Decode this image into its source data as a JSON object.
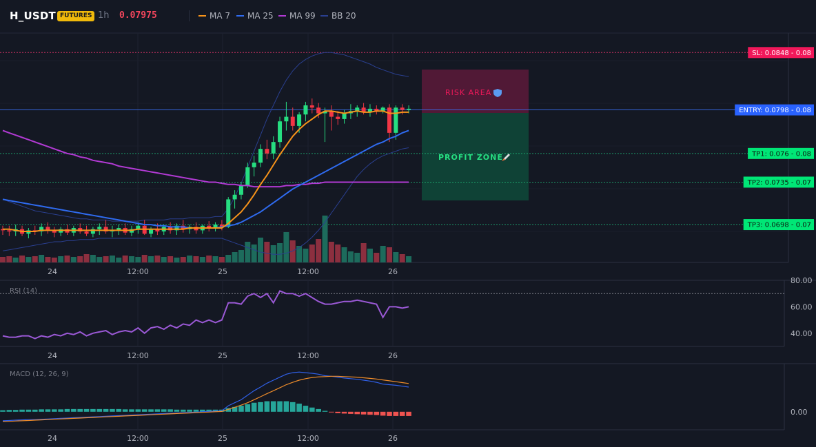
{
  "header": {
    "symbol": "H_USDT",
    "badge": "FUTURES",
    "interval": "1h",
    "price": "0.07975",
    "legend": [
      {
        "label": "MA 7",
        "color": "#f7931a"
      },
      {
        "label": "MA 25",
        "color": "#2f6bf0"
      },
      {
        "label": "MA 99",
        "color": "#b23ad4"
      },
      {
        "label": "BB 20",
        "color": "#2a3f8f"
      }
    ]
  },
  "zones": {
    "risk_label": "RISK AREA",
    "profit_label": "PROFIT ZONE"
  },
  "levels": [
    {
      "id": "sl",
      "label": "SL: 0.0848 - 0.08",
      "value": 0.0848,
      "bg": "#f0185a",
      "fg": "#ffffff",
      "line": "#e0356a"
    },
    {
      "id": "entry",
      "label": "ENTRY: 0.0798 - 0.08",
      "value": 0.0798,
      "bg": "#2962ff",
      "fg": "#ffffff",
      "line": "#3a6df0"
    },
    {
      "id": "tp1",
      "label": "TP1: 0.076 - 0.08",
      "value": 0.076,
      "bg": "#00e676",
      "fg": "#0b1a10",
      "line": "#1ea870"
    },
    {
      "id": "tp2",
      "label": "TP2: 0.0735 - 0.07",
      "value": 0.0735,
      "bg": "#00e676",
      "fg": "#0b1a10",
      "line": "#1ea870"
    },
    {
      "id": "tp3",
      "label": "TP3: 0.0698 - 0.07",
      "value": 0.0698,
      "bg": "#00e676",
      "fg": "#0b1a10",
      "line": "#1ea870"
    }
  ],
  "x_ticks": [
    "24",
    "12:00",
    "25",
    "12:00",
    "26"
  ],
  "rsi": {
    "title": "RSI (14)",
    "ticks": [
      "80.00",
      "60.00",
      "40.00"
    ],
    "range": [
      30,
      80
    ]
  },
  "macd": {
    "title": "MACD (12, 26, 9)",
    "ticks": [
      "0.00"
    ]
  },
  "colors": {
    "up": "#26de81",
    "down": "#f23645",
    "vol_up": "#1d6b5c",
    "vol_down": "#8c2f3f",
    "rsi": "#9b59d6",
    "macd": "#3060e8",
    "signal": "#ef8c2a",
    "hist_up": "#26a69a",
    "hist_down": "#ef5350"
  },
  "chart_data": {
    "type": "candlestick",
    "price_range": [
      0.0665,
      0.0865
    ],
    "candles": [
      [
        0.0694,
        0.0697,
        0.0689,
        0.0693
      ],
      [
        0.0693,
        0.0697,
        0.0688,
        0.0692
      ],
      [
        0.0692,
        0.0698,
        0.0688,
        0.0694
      ],
      [
        0.0694,
        0.0697,
        0.0688,
        0.069
      ],
      [
        0.069,
        0.0695,
        0.0686,
        0.0693
      ],
      [
        0.0693,
        0.0697,
        0.0689,
        0.0692
      ],
      [
        0.0692,
        0.0699,
        0.0688,
        0.0696
      ],
      [
        0.0696,
        0.07,
        0.069,
        0.0693
      ],
      [
        0.0693,
        0.0696,
        0.0687,
        0.0691
      ],
      [
        0.0691,
        0.0696,
        0.0688,
        0.0694
      ],
      [
        0.0694,
        0.0698,
        0.0689,
        0.0691
      ],
      [
        0.0691,
        0.0697,
        0.0688,
        0.0695
      ],
      [
        0.0695,
        0.0699,
        0.069,
        0.0692
      ],
      [
        0.0692,
        0.0697,
        0.0688,
        0.069
      ],
      [
        0.069,
        0.0696,
        0.0687,
        0.0694
      ],
      [
        0.0694,
        0.0699,
        0.0689,
        0.0696
      ],
      [
        0.0696,
        0.0702,
        0.069,
        0.0692
      ],
      [
        0.0692,
        0.0697,
        0.0687,
        0.0693
      ],
      [
        0.0693,
        0.0698,
        0.0689,
        0.0695
      ],
      [
        0.0695,
        0.0699,
        0.0689,
        0.0691
      ],
      [
        0.0691,
        0.0697,
        0.0688,
        0.0694
      ],
      [
        0.0694,
        0.07,
        0.069,
        0.0697
      ],
      [
        0.0697,
        0.0702,
        0.0689,
        0.069
      ],
      [
        0.069,
        0.0696,
        0.0687,
        0.0694
      ],
      [
        0.0694,
        0.0699,
        0.0689,
        0.0692
      ],
      [
        0.0692,
        0.0698,
        0.0689,
        0.0696
      ],
      [
        0.0696,
        0.07,
        0.069,
        0.0693
      ],
      [
        0.0693,
        0.0699,
        0.0689,
        0.0697
      ],
      [
        0.0697,
        0.0702,
        0.0691,
        0.0694
      ],
      [
        0.0694,
        0.0698,
        0.069,
        0.0696
      ],
      [
        0.0696,
        0.07,
        0.069,
        0.0693
      ],
      [
        0.0693,
        0.0698,
        0.069,
        0.0697
      ],
      [
        0.0697,
        0.0701,
        0.0692,
        0.0695
      ],
      [
        0.0695,
        0.07,
        0.0692,
        0.0698
      ],
      [
        0.0698,
        0.0702,
        0.0693,
        0.0696
      ],
      [
        0.0696,
        0.0722,
        0.0695,
        0.072
      ],
      [
        0.072,
        0.0728,
        0.0712,
        0.0724
      ],
      [
        0.0724,
        0.0735,
        0.072,
        0.0732
      ],
      [
        0.0732,
        0.0752,
        0.073,
        0.0748
      ],
      [
        0.0748,
        0.0758,
        0.074,
        0.0752
      ],
      [
        0.0752,
        0.0768,
        0.0748,
        0.0764
      ],
      [
        0.0764,
        0.0772,
        0.0755,
        0.076
      ],
      [
        0.076,
        0.0775,
        0.0755,
        0.077
      ],
      [
        0.077,
        0.0792,
        0.0765,
        0.0788
      ],
      [
        0.0788,
        0.0805,
        0.078,
        0.0792
      ],
      [
        0.0792,
        0.08,
        0.078,
        0.0784
      ],
      [
        0.0784,
        0.0796,
        0.0778,
        0.0794
      ],
      [
        0.0794,
        0.0805,
        0.0788,
        0.0802
      ],
      [
        0.0802,
        0.0808,
        0.0795,
        0.08
      ],
      [
        0.08,
        0.0804,
        0.0791,
        0.0795
      ],
      [
        0.0795,
        0.08,
        0.077,
        0.0797
      ],
      [
        0.0797,
        0.0802,
        0.078,
        0.0792
      ],
      [
        0.0792,
        0.0797,
        0.0785,
        0.079
      ],
      [
        0.079,
        0.0798,
        0.0786,
        0.0795
      ],
      [
        0.0795,
        0.0803,
        0.079,
        0.0797
      ],
      [
        0.0797,
        0.0802,
        0.0792,
        0.08
      ],
      [
        0.08,
        0.0804,
        0.0794,
        0.0796
      ],
      [
        0.0796,
        0.0803,
        0.0792,
        0.0799
      ],
      [
        0.0799,
        0.0802,
        0.0794,
        0.0797
      ],
      [
        0.0797,
        0.0801,
        0.0795,
        0.08
      ],
      [
        0.08,
        0.0803,
        0.077,
        0.0778
      ],
      [
        0.0778,
        0.0802,
        0.0772,
        0.08
      ],
      [
        0.08,
        0.0803,
        0.0794,
        0.0798
      ],
      [
        0.0798,
        0.0802,
        0.0795,
        0.0799
      ]
    ],
    "volume": [
      8,
      9,
      7,
      10,
      8,
      9,
      11,
      8,
      7,
      9,
      10,
      8,
      9,
      12,
      11,
      8,
      9,
      10,
      7,
      10,
      9,
      8,
      11,
      9,
      10,
      8,
      9,
      7,
      8,
      10,
      9,
      8,
      10,
      9,
      8,
      11,
      15,
      18,
      30,
      26,
      36,
      30,
      25,
      28,
      44,
      32,
      24,
      20,
      26,
      34,
      68,
      30,
      26,
      22,
      16,
      14,
      28,
      20,
      14,
      24,
      22,
      15,
      12,
      9
    ],
    "rsi": [
      38,
      37,
      37,
      38,
      38,
      36,
      38,
      37,
      39,
      38,
      40,
      39,
      41,
      38,
      40,
      41,
      42,
      39,
      41,
      42,
      41,
      44,
      40,
      44,
      45,
      43,
      46,
      44,
      47,
      46,
      50,
      48,
      50,
      48,
      50,
      63,
      63,
      62,
      68,
      70,
      67,
      70,
      63,
      72,
      70,
      70,
      68,
      70,
      67,
      64,
      62,
      62,
      63,
      64,
      64,
      65,
      64,
      63,
      62,
      52,
      60,
      60,
      59,
      60
    ],
    "macd": [
      -0.3,
      -0.29,
      -0.28,
      -0.27,
      -0.26,
      -0.26,
      -0.25,
      -0.24,
      -0.23,
      -0.22,
      -0.21,
      -0.2,
      -0.19,
      -0.18,
      -0.17,
      -0.16,
      -0.15,
      -0.14,
      -0.13,
      -0.12,
      -0.11,
      -0.1,
      -0.09,
      -0.08,
      -0.07,
      -0.06,
      -0.05,
      -0.04,
      -0.03,
      -0.02,
      -0.01,
      0.0,
      0.01,
      0.02,
      0.03,
      0.2,
      0.3,
      0.4,
      0.55,
      0.7,
      0.82,
      0.95,
      1.05,
      1.15,
      1.25,
      1.3,
      1.32,
      1.3,
      1.28,
      1.25,
      1.2,
      1.18,
      1.15,
      1.12,
      1.1,
      1.08,
      1.05,
      1.02,
      0.98,
      0.92,
      0.9,
      0.88,
      0.85,
      0.82
    ],
    "signal": [
      -0.33,
      -0.32,
      -0.31,
      -0.3,
      -0.29,
      -0.28,
      -0.27,
      -0.26,
      -0.25,
      -0.24,
      -0.23,
      -0.22,
      -0.21,
      -0.2,
      -0.19,
      -0.18,
      -0.17,
      -0.16,
      -0.15,
      -0.14,
      -0.13,
      -0.12,
      -0.11,
      -0.1,
      -0.09,
      -0.08,
      -0.07,
      -0.06,
      -0.05,
      -0.04,
      -0.03,
      -0.02,
      -0.01,
      0.0,
      0.01,
      0.08,
      0.15,
      0.22,
      0.3,
      0.4,
      0.5,
      0.6,
      0.7,
      0.8,
      0.9,
      0.98,
      1.05,
      1.1,
      1.14,
      1.16,
      1.17,
      1.18,
      1.18,
      1.17,
      1.16,
      1.15,
      1.13,
      1.11,
      1.09,
      1.06,
      1.03,
      1.0,
      0.97,
      0.94
    ],
    "hist": [
      0.05,
      0.06,
      0.06,
      0.07,
      0.07,
      0.07,
      0.08,
      0.08,
      0.08,
      0.08,
      0.09,
      0.09,
      0.09,
      0.09,
      0.09,
      0.09,
      0.09,
      0.09,
      0.09,
      0.08,
      0.08,
      0.08,
      0.08,
      0.08,
      0.08,
      0.08,
      0.08,
      0.07,
      0.07,
      0.07,
      0.07,
      0.07,
      0.07,
      0.07,
      0.07,
      0.12,
      0.16,
      0.2,
      0.25,
      0.3,
      0.32,
      0.35,
      0.35,
      0.35,
      0.35,
      0.32,
      0.27,
      0.2,
      0.14,
      0.09,
      0.03,
      -0.02,
      -0.05,
      -0.06,
      -0.07,
      -0.08,
      -0.09,
      -0.1,
      -0.11,
      -0.13,
      -0.14,
      -0.14,
      -0.14,
      -0.14
    ],
    "ma7": [
      0.0694,
      0.0694,
      0.0693,
      0.0692,
      0.0692,
      0.0692,
      0.0693,
      0.0693,
      0.0693,
      0.0693,
      0.0693,
      0.0693,
      0.0693,
      0.0693,
      0.0693,
      0.0693,
      0.0693,
      0.0693,
      0.0693,
      0.0693,
      0.0693,
      0.0694,
      0.0694,
      0.0694,
      0.0694,
      0.0694,
      0.0694,
      0.0694,
      0.0694,
      0.0695,
      0.0695,
      0.0695,
      0.0695,
      0.0695,
      0.0695,
      0.0699,
      0.0704,
      0.0709,
      0.0716,
      0.0724,
      0.0733,
      0.0741,
      0.075,
      0.0759,
      0.0767,
      0.0775,
      0.0781,
      0.0786,
      0.079,
      0.0794,
      0.0797,
      0.0797,
      0.0796,
      0.0795,
      0.0796,
      0.0797,
      0.0796,
      0.0796,
      0.0797,
      0.0797,
      0.0795,
      0.0795,
      0.0796,
      0.0796
    ],
    "ma25": [
      0.072,
      0.0719,
      0.0718,
      0.0717,
      0.0716,
      0.0715,
      0.0714,
      0.0713,
      0.0712,
      0.0711,
      0.071,
      0.0709,
      0.0708,
      0.0707,
      0.0706,
      0.0705,
      0.0704,
      0.0703,
      0.0702,
      0.0701,
      0.07,
      0.0699,
      0.0698,
      0.0698,
      0.0697,
      0.0697,
      0.0696,
      0.0696,
      0.0696,
      0.0695,
      0.0695,
      0.0695,
      0.0695,
      0.0695,
      0.0696,
      0.0697,
      0.0698,
      0.07,
      0.0703,
      0.0706,
      0.0709,
      0.0713,
      0.0717,
      0.0721,
      0.0725,
      0.0729,
      0.0732,
      0.0735,
      0.0738,
      0.0741,
      0.0744,
      0.0747,
      0.075,
      0.0753,
      0.0756,
      0.0759,
      0.0762,
      0.0765,
      0.0768,
      0.077,
      0.0773,
      0.0775,
      0.0778,
      0.078
    ],
    "ma99": [
      0.078,
      0.0778,
      0.0776,
      0.0774,
      0.0772,
      0.077,
      0.0768,
      0.0766,
      0.0764,
      0.0762,
      0.076,
      0.0759,
      0.0757,
      0.0756,
      0.0754,
      0.0753,
      0.0752,
      0.0751,
      0.0749,
      0.0748,
      0.0747,
      0.0746,
      0.0745,
      0.0744,
      0.0743,
      0.0742,
      0.0741,
      0.074,
      0.0739,
      0.0738,
      0.0737,
      0.0736,
      0.0735,
      0.0735,
      0.0734,
      0.0733,
      0.0733,
      0.0732,
      0.0732,
      0.0731,
      0.0731,
      0.0731,
      0.0731,
      0.0731,
      0.0732,
      0.0732,
      0.0733,
      0.0733,
      0.0734,
      0.0734,
      0.0735,
      0.0735,
      0.0735,
      0.0735,
      0.0735,
      0.0735,
      0.0735,
      0.0735,
      0.0735,
      0.0735,
      0.0735,
      0.0735,
      0.0735,
      0.0735
    ],
    "bb_upper": [
      0.072,
      0.0718,
      0.0716,
      0.0714,
      0.0712,
      0.071,
      0.0709,
      0.0708,
      0.0707,
      0.0706,
      0.0705,
      0.0704,
      0.0703,
      0.0703,
      0.0702,
      0.0702,
      0.0702,
      0.0701,
      0.0701,
      0.0701,
      0.0701,
      0.0701,
      0.0702,
      0.0702,
      0.0702,
      0.0702,
      0.0703,
      0.0703,
      0.0703,
      0.0704,
      0.0704,
      0.0704,
      0.0704,
      0.0705,
      0.0705,
      0.0712,
      0.0722,
      0.0734,
      0.0748,
      0.0762,
      0.0776,
      0.079,
      0.0802,
      0.0814,
      0.0824,
      0.0832,
      0.0838,
      0.0842,
      0.0845,
      0.0847,
      0.0848,
      0.0848,
      0.0847,
      0.0846,
      0.0844,
      0.0842,
      0.084,
      0.0838,
      0.0835,
      0.0833,
      0.0831,
      0.0829,
      0.0828,
      0.0827
    ],
    "bb_lower": [
      0.0675,
      0.0676,
      0.0677,
      0.0678,
      0.0679,
      0.068,
      0.0681,
      0.0682,
      0.0683,
      0.0683,
      0.0684,
      0.0684,
      0.0685,
      0.0685,
      0.0685,
      0.0686,
      0.0686,
      0.0686,
      0.0686,
      0.0686,
      0.0686,
      0.0686,
      0.0686,
      0.0686,
      0.0686,
      0.0686,
      0.0686,
      0.0686,
      0.0686,
      0.0686,
      0.0686,
      0.0686,
      0.0686,
      0.0686,
      0.0686,
      0.0684,
      0.0682,
      0.068,
      0.0678,
      0.0676,
      0.0674,
      0.0673,
      0.0672,
      0.0672,
      0.0673,
      0.0675,
      0.0678,
      0.0682,
      0.0687,
      0.0693,
      0.07,
      0.0708,
      0.0716,
      0.0724,
      0.0732,
      0.074,
      0.0746,
      0.0751,
      0.0755,
      0.0758,
      0.076,
      0.0762,
      0.0764,
      0.0765
    ]
  }
}
